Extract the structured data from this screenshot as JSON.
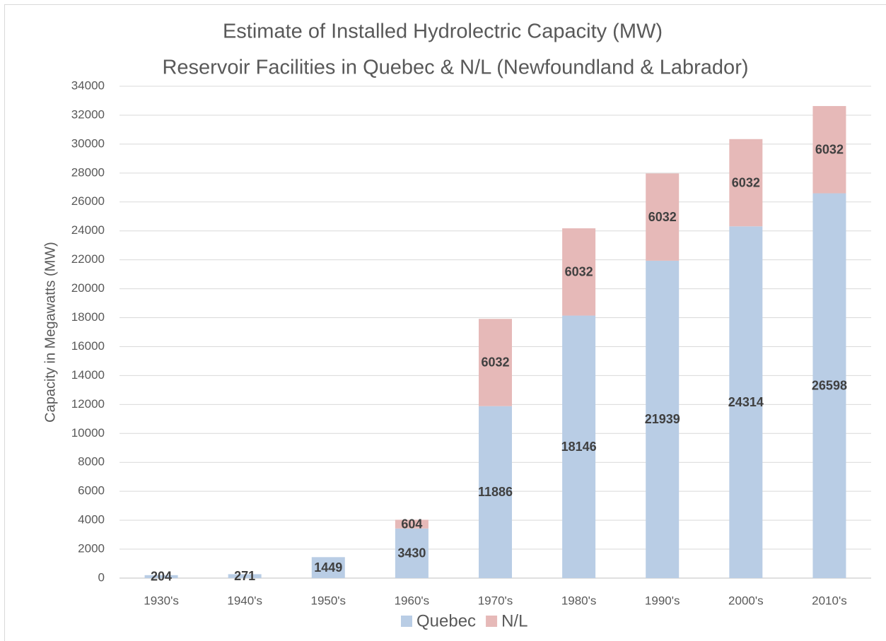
{
  "chart_data": {
    "type": "stacked_bar",
    "title": "Estimate of Installed Hydrolectric Capacity (MW)",
    "subtitle": "Reservoir Facilities in Quebec & N/L (Newfoundland & Labrador)",
    "y_label": "Capacity in Megawatts (MW)",
    "categories": [
      "1930's",
      "1940's",
      "1950's",
      "1960's",
      "1970's",
      "1980's",
      "1990's",
      "2000's",
      "2010's"
    ],
    "series": [
      {
        "name": "Quebec",
        "color": "#b9cde5",
        "values": [
          204,
          271,
          1449,
          3430,
          11886,
          18146,
          21939,
          24314,
          26598
        ]
      },
      {
        "name": "N/L",
        "color": "#e6b9b8",
        "values": [
          null,
          null,
          null,
          604,
          6032,
          6032,
          6032,
          6032,
          6032
        ]
      }
    ],
    "ylim": [
      0,
      34000
    ],
    "yticks": [
      0,
      2000,
      4000,
      6000,
      8000,
      10000,
      12000,
      14000,
      16000,
      18000,
      20000,
      22000,
      24000,
      26000,
      28000,
      30000,
      32000,
      34000
    ],
    "grid": true,
    "legend": "bottom"
  }
}
